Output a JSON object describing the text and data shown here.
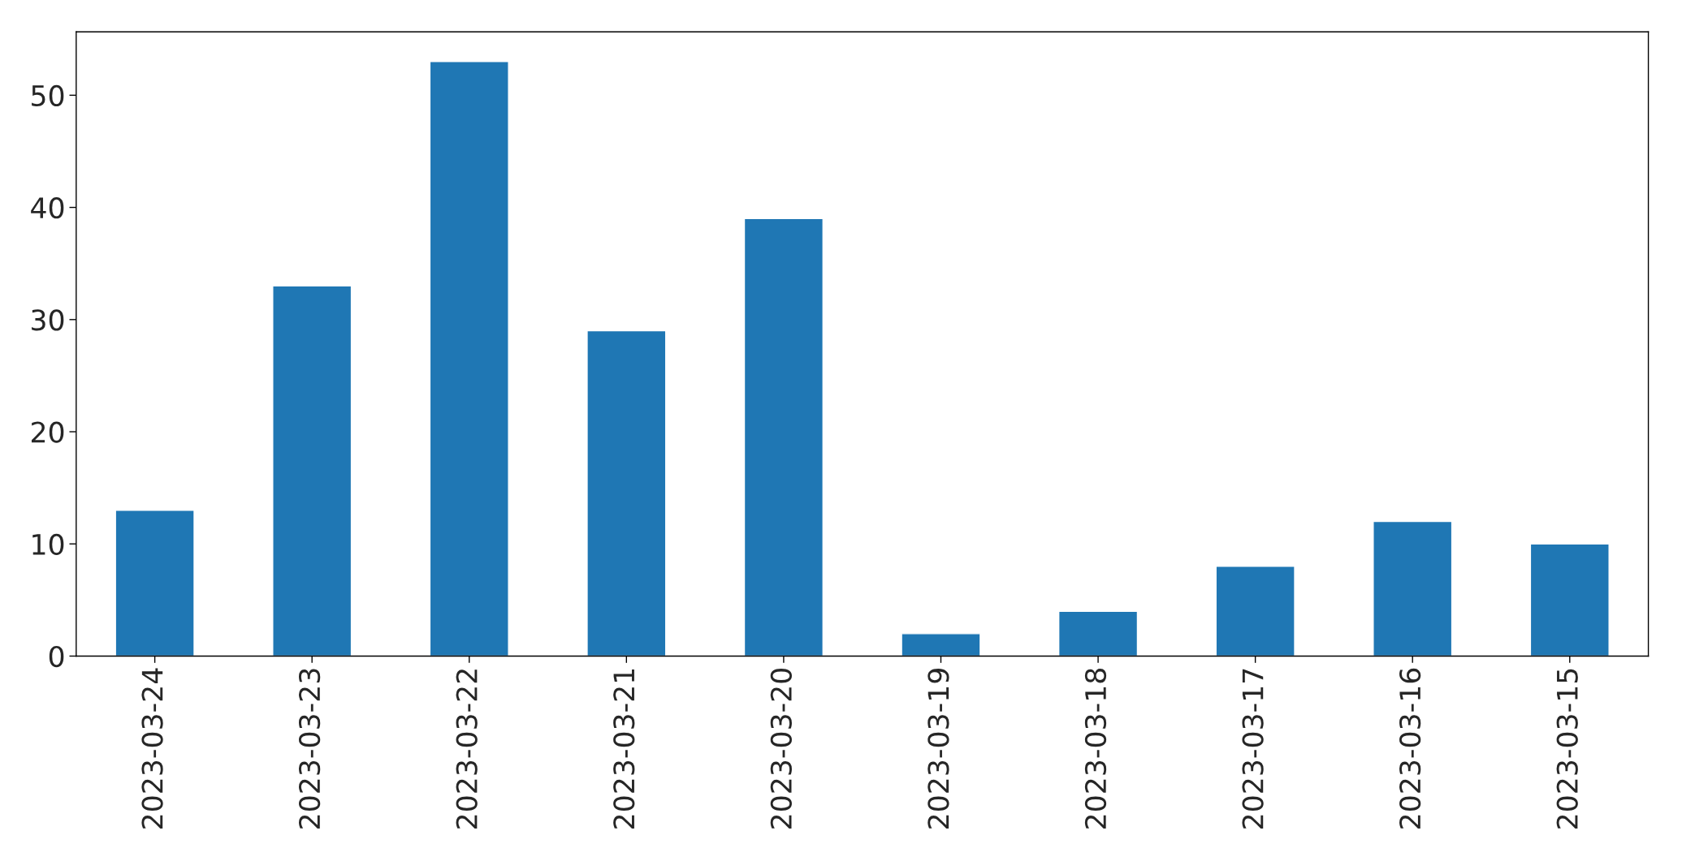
{
  "chart_data": {
    "type": "bar",
    "categories": [
      "2023-03-24",
      "2023-03-23",
      "2023-03-22",
      "2023-03-21",
      "2023-03-20",
      "2023-03-19",
      "2023-03-18",
      "2023-03-17",
      "2023-03-16",
      "2023-03-15"
    ],
    "values": [
      13,
      33,
      53,
      29,
      39,
      2,
      4,
      8,
      12,
      10
    ],
    "color": "#1f77b4",
    "ylim": [
      0,
      55.65
    ],
    "yticks": [
      0,
      10,
      20,
      30,
      40,
      50
    ],
    "grid": false
  }
}
